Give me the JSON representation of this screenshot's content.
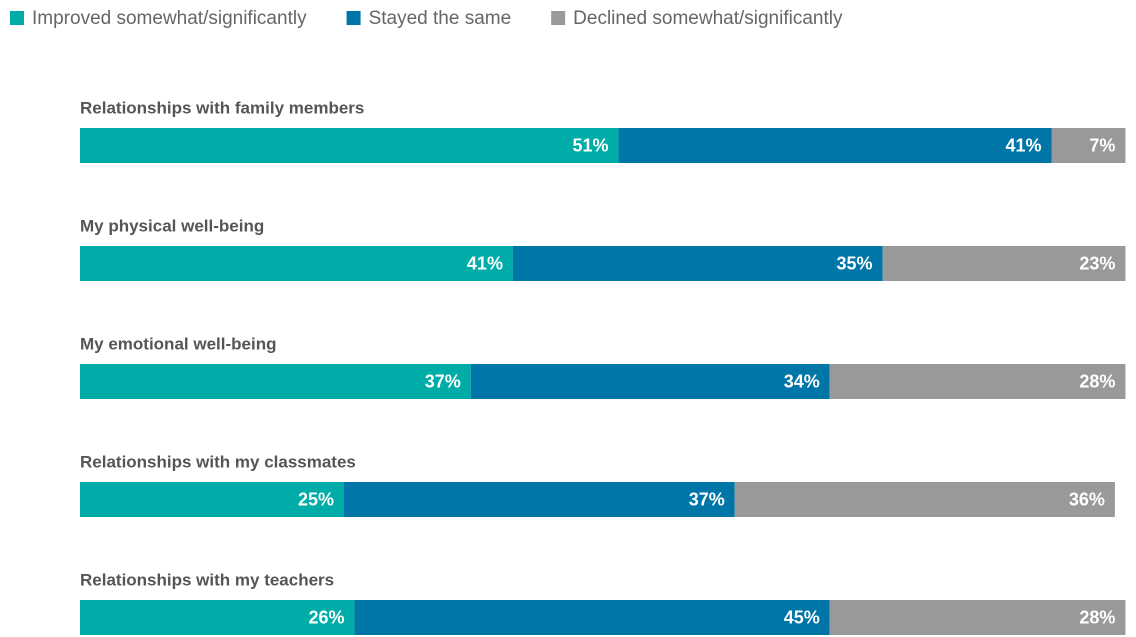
{
  "chart_data": {
    "type": "stacked-bar-horizontal",
    "categories": [
      "Relationships with family members",
      "My physical well-being",
      "My emotional well-being",
      "Relationships with my classmates",
      "Relationships with my teachers"
    ],
    "series": [
      {
        "name": "Improved somewhat/significantly",
        "color": "#00aca8",
        "values": [
          51,
          41,
          37,
          25,
          26
        ],
        "value_labels": [
          "51%",
          "41%",
          "37%",
          "25%",
          "26%"
        ]
      },
      {
        "name": "Stayed the same",
        "color": "#0076a8",
        "values": [
          41,
          35,
          34,
          37,
          45
        ],
        "value_labels": [
          "41%",
          "35%",
          "34%",
          "37%",
          "45%"
        ]
      },
      {
        "name": "Declined somewhat/significantly",
        "color": "#97999b",
        "values": [
          7,
          23,
          28,
          36,
          28
        ],
        "value_labels": [
          "7%",
          "23%",
          "28%",
          "36%",
          "28%"
        ]
      }
    ],
    "xlim": [
      0,
      100
    ],
    "legend": "top-left"
  }
}
